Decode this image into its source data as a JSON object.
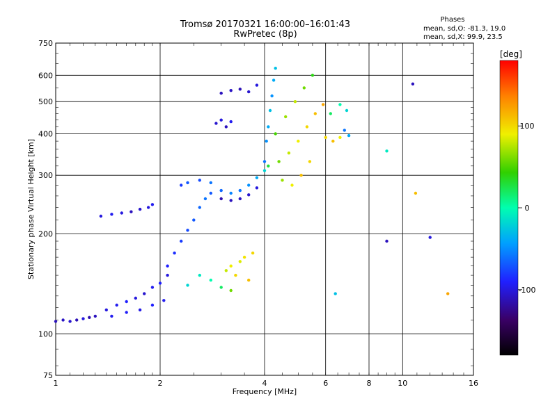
{
  "chart_data": {
    "type": "scatter",
    "title": "Tromsø 20170321 16:00:00–16:01:43",
    "subtitle": "RwPretec (8p)",
    "xlabel": "Frequency [MHz]",
    "ylabel": "Stationary phase Virtual Height [km]",
    "x_scale": "log",
    "y_scale": "log",
    "xlim": [
      1,
      16
    ],
    "ylim": [
      75,
      750
    ],
    "x_ticks": [
      1,
      2,
      4,
      6,
      8,
      10,
      16
    ],
    "y_ticks": [
      75,
      100,
      200,
      300,
      400,
      500,
      600,
      750
    ],
    "x_major_grid": [
      2,
      4,
      6,
      8,
      10
    ],
    "y_major_grid": [
      100,
      200,
      300,
      400,
      500,
      600
    ],
    "grid": true,
    "phase_stats": {
      "header": "Phases",
      "line_o": "mean, sd,O: -81.3, 19.0",
      "line_x": "mean, sd,X:  99.9, 23.5"
    },
    "colorbar": {
      "label": "[deg]",
      "range": [
        -180,
        180
      ],
      "ticks": [
        100,
        0,
        -100
      ]
    },
    "series": [
      {
        "points": [
          [
            1.0,
            109,
            -110
          ],
          [
            1.05,
            110,
            -108
          ],
          [
            1.1,
            109,
            -105
          ],
          [
            1.15,
            110,
            -112
          ],
          [
            1.2,
            111,
            -100
          ],
          [
            1.25,
            112,
            -115
          ],
          [
            1.3,
            113,
            -110
          ]
        ]
      },
      {
        "points": [
          [
            1.4,
            118,
            -100
          ],
          [
            1.5,
            122,
            -95
          ],
          [
            1.6,
            125,
            -90
          ],
          [
            1.7,
            128,
            -100
          ],
          [
            1.8,
            132,
            -105
          ],
          [
            1.9,
            138,
            -95
          ],
          [
            2.0,
            142,
            -90
          ],
          [
            2.1,
            150,
            -100
          ]
        ]
      },
      {
        "points": [
          [
            1.45,
            113,
            -95
          ],
          [
            1.6,
            116,
            -92
          ],
          [
            1.75,
            118,
            -98
          ],
          [
            1.9,
            122,
            -90
          ],
          [
            2.05,
            126,
            -95
          ]
        ]
      },
      {
        "points": [
          [
            1.35,
            226,
            -100
          ],
          [
            1.45,
            229,
            -95
          ],
          [
            1.55,
            231,
            -100
          ],
          [
            1.65,
            233,
            -110
          ],
          [
            1.75,
            237,
            -105
          ],
          [
            1.85,
            240,
            -100
          ],
          [
            1.9,
            245,
            -95
          ]
        ]
      },
      {
        "points": [
          [
            2.1,
            160,
            -90
          ],
          [
            2.2,
            175,
            -85
          ],
          [
            2.3,
            190,
            -80
          ],
          [
            2.4,
            205,
            -75
          ],
          [
            2.5,
            220,
            -70
          ],
          [
            2.6,
            240,
            -65
          ],
          [
            2.7,
            255,
            -60
          ],
          [
            2.8,
            265,
            -70
          ]
        ]
      },
      {
        "points": [
          [
            2.3,
            280,
            -80
          ],
          [
            2.4,
            285,
            -70
          ],
          [
            2.6,
            290,
            -75
          ],
          [
            2.8,
            285,
            -60
          ],
          [
            3.0,
            270,
            -65
          ],
          [
            3.2,
            265,
            -55
          ],
          [
            3.4,
            270,
            -60
          ],
          [
            3.6,
            280,
            -50
          ],
          [
            3.8,
            295,
            -40
          ],
          [
            4.0,
            310,
            -20
          ]
        ]
      },
      {
        "points": [
          [
            3.0,
            255,
            -115
          ],
          [
            3.2,
            252,
            -110
          ],
          [
            3.4,
            255,
            -108
          ],
          [
            3.6,
            262,
            -105
          ],
          [
            3.8,
            275,
            -100
          ]
        ]
      },
      {
        "points": [
          [
            3.0,
            530,
            -110
          ],
          [
            3.2,
            540,
            -108
          ],
          [
            3.4,
            545,
            -112
          ],
          [
            3.6,
            535,
            -105
          ],
          [
            3.8,
            560,
            -100
          ]
        ]
      },
      {
        "points": [
          [
            2.9,
            430,
            -105
          ],
          [
            3.0,
            440,
            -100
          ],
          [
            3.1,
            420,
            -110
          ],
          [
            3.2,
            435,
            -95
          ]
        ]
      },
      {
        "points": [
          [
            4.0,
            330,
            -60
          ],
          [
            4.05,
            380,
            -50
          ],
          [
            4.1,
            420,
            -40
          ],
          [
            4.15,
            470,
            -30
          ],
          [
            4.2,
            520,
            -50
          ],
          [
            4.25,
            580,
            -40
          ],
          [
            4.3,
            630,
            -30
          ]
        ]
      },
      {
        "points": [
          [
            4.1,
            320,
            30
          ],
          [
            4.4,
            330,
            60
          ],
          [
            4.7,
            350,
            80
          ],
          [
            5.0,
            380,
            90
          ],
          [
            5.3,
            420,
            100
          ],
          [
            5.6,
            460,
            110
          ],
          [
            5.9,
            490,
            120
          ]
        ]
      },
      {
        "points": [
          [
            4.3,
            400,
            50
          ],
          [
            4.6,
            450,
            70
          ],
          [
            4.9,
            500,
            80
          ],
          [
            5.2,
            550,
            60
          ],
          [
            5.5,
            600,
            40
          ]
        ]
      },
      {
        "points": [
          [
            4.5,
            290,
            70
          ],
          [
            4.8,
            280,
            90
          ],
          [
            5.1,
            300,
            110
          ],
          [
            5.4,
            330,
            100
          ]
        ]
      },
      {
        "points": [
          [
            6.0,
            390,
            100
          ],
          [
            6.3,
            380,
            110
          ],
          [
            6.6,
            390,
            90
          ],
          [
            6.8,
            410,
            -60
          ],
          [
            7.0,
            395,
            -40
          ],
          [
            6.2,
            460,
            20
          ],
          [
            6.6,
            490,
            0
          ],
          [
            6.9,
            470,
            -20
          ]
        ]
      },
      {
        "points": [
          [
            3.1,
            155,
            80
          ],
          [
            3.2,
            160,
            90
          ],
          [
            3.3,
            150,
            100
          ],
          [
            3.4,
            165,
            85
          ],
          [
            3.5,
            170,
            95
          ],
          [
            3.6,
            145,
            110
          ],
          [
            3.7,
            175,
            100
          ]
        ]
      },
      {
        "points": [
          [
            2.4,
            140,
            -20
          ],
          [
            2.6,
            150,
            -10
          ],
          [
            2.8,
            145,
            0
          ],
          [
            3.0,
            138,
            20
          ],
          [
            3.2,
            135,
            60
          ]
        ]
      },
      {
        "points": [
          [
            9.0,
            190,
            -110
          ],
          [
            9.0,
            355,
            -10
          ],
          [
            10.7,
            565,
            -110
          ],
          [
            10.9,
            265,
            110
          ],
          [
            12.0,
            195,
            -100
          ],
          [
            6.4,
            132,
            -30
          ],
          [
            13.5,
            132,
            120
          ]
        ]
      }
    ]
  }
}
